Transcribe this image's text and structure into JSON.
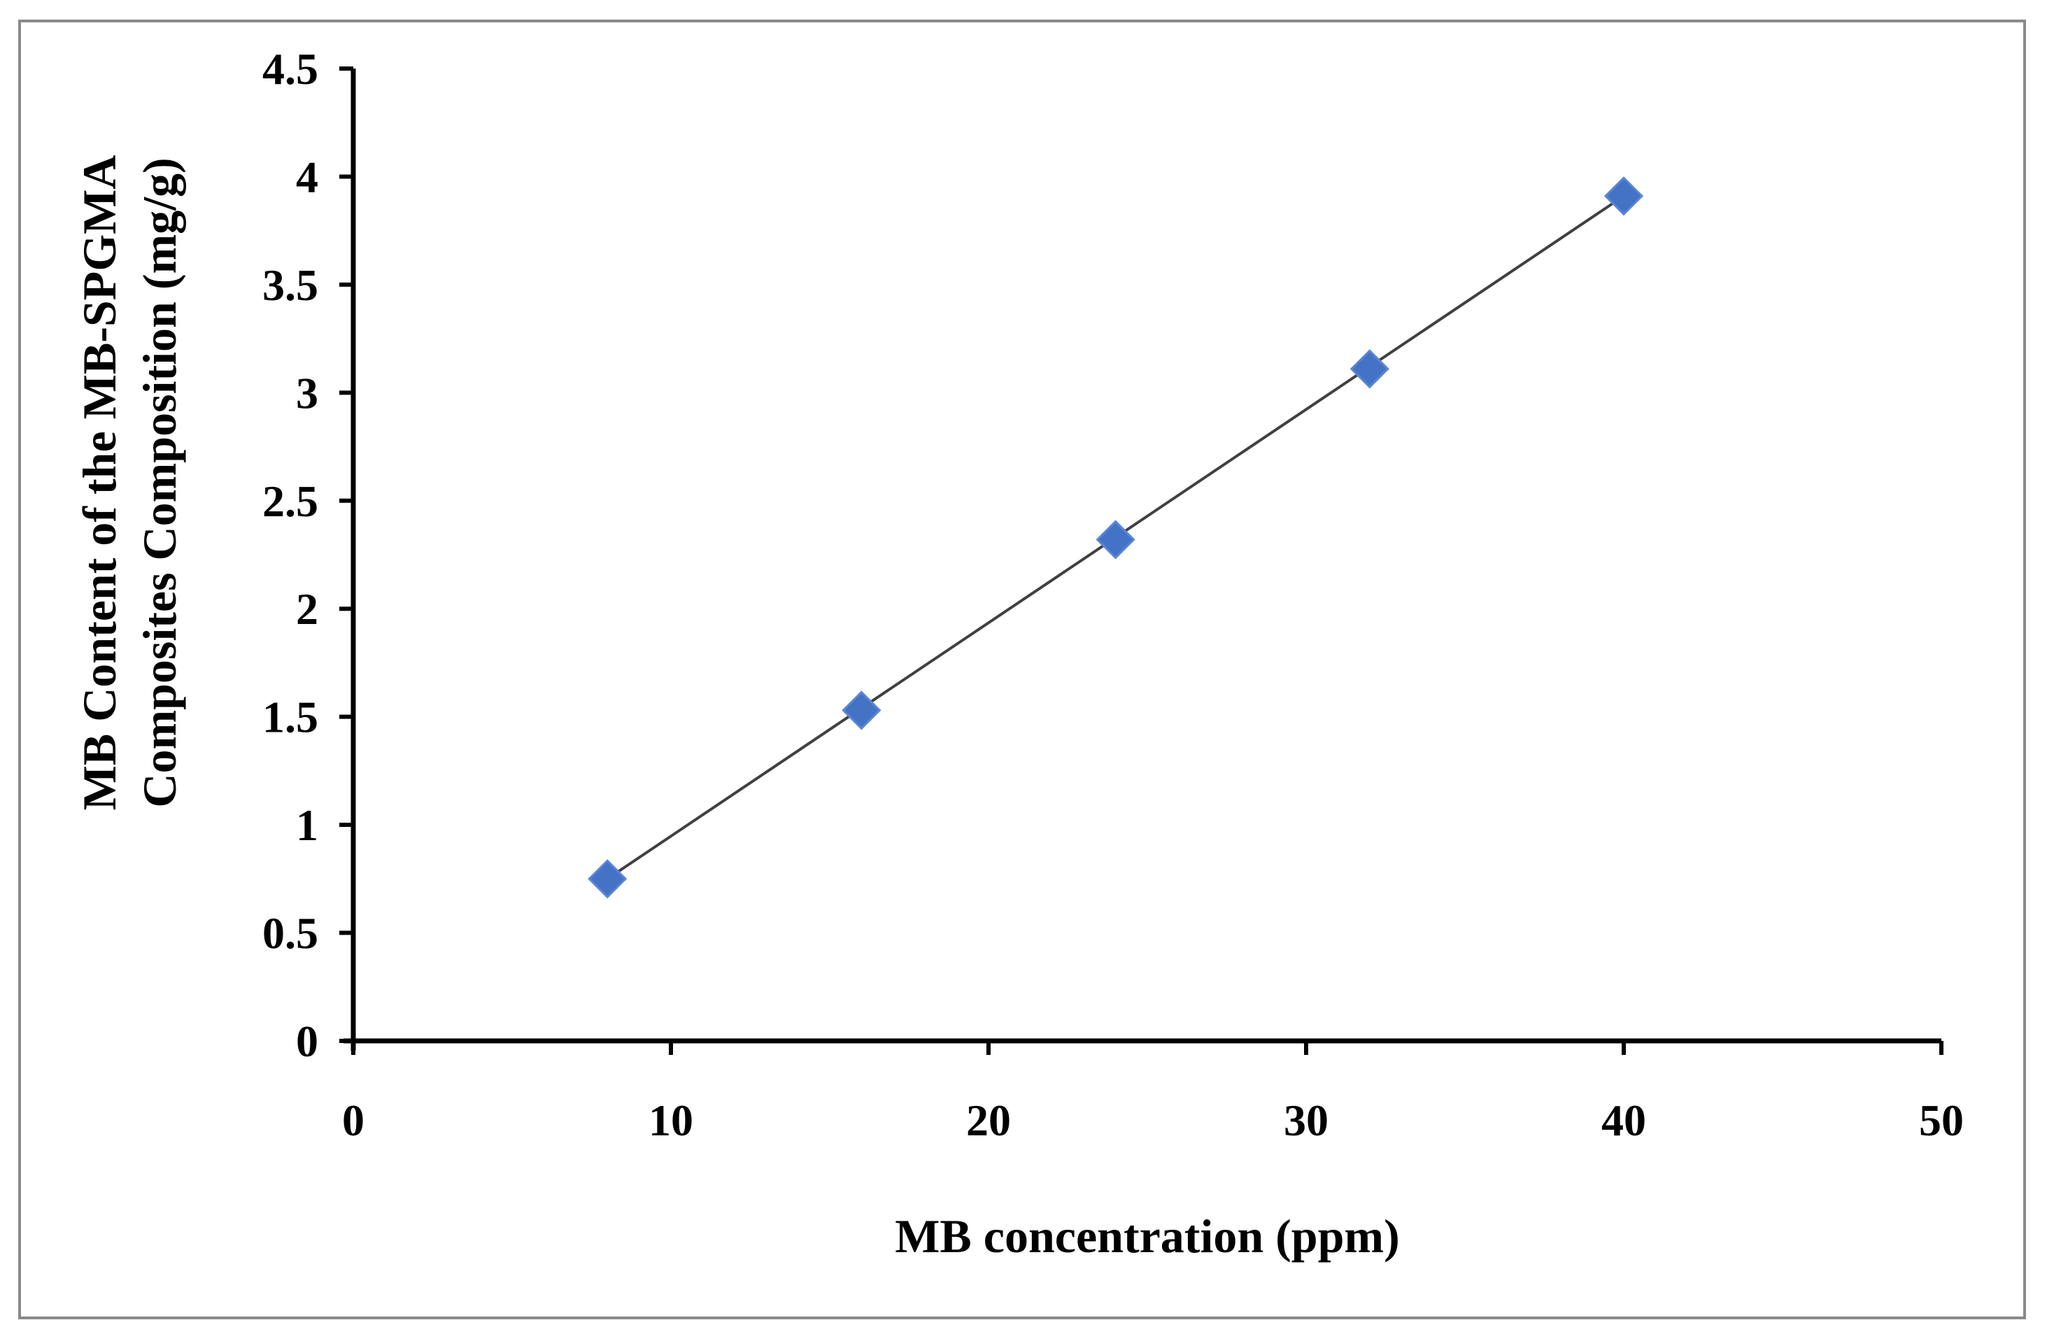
{
  "chart_data": {
    "type": "scatter",
    "title": "",
    "xlabel": "MB concentration (ppm)",
    "ylabel_lines": [
      "MB Content of the MB-SPGMA",
      "Composites Composition (mg/g)"
    ],
    "xlim": [
      0,
      50
    ],
    "ylim": [
      0,
      4.5
    ],
    "xticks": [
      0,
      10,
      20,
      30,
      40,
      50
    ],
    "yticks": [
      0,
      0.5,
      1,
      1.5,
      2,
      2.5,
      3,
      3.5,
      4,
      4.5
    ],
    "xtick_labels": [
      "0",
      "10",
      "20",
      "30",
      "40",
      "50"
    ],
    "ytick_labels": [
      "0",
      "0.5",
      "1",
      "1.5",
      "2",
      "2.5",
      "3",
      "3.5",
      "4",
      "4.5"
    ],
    "grid": false,
    "legend": "none",
    "series": [
      {
        "marker": "diamond",
        "color": "#4472c4",
        "x": [
          8,
          16,
          24,
          32,
          40
        ],
        "y": [
          0.75,
          1.53,
          2.32,
          3.11,
          3.91
        ]
      }
    ],
    "trendline": {
      "type": "linear",
      "color": "#404040",
      "x": [
        8,
        40
      ],
      "y": [
        0.75,
        3.91
      ]
    }
  }
}
